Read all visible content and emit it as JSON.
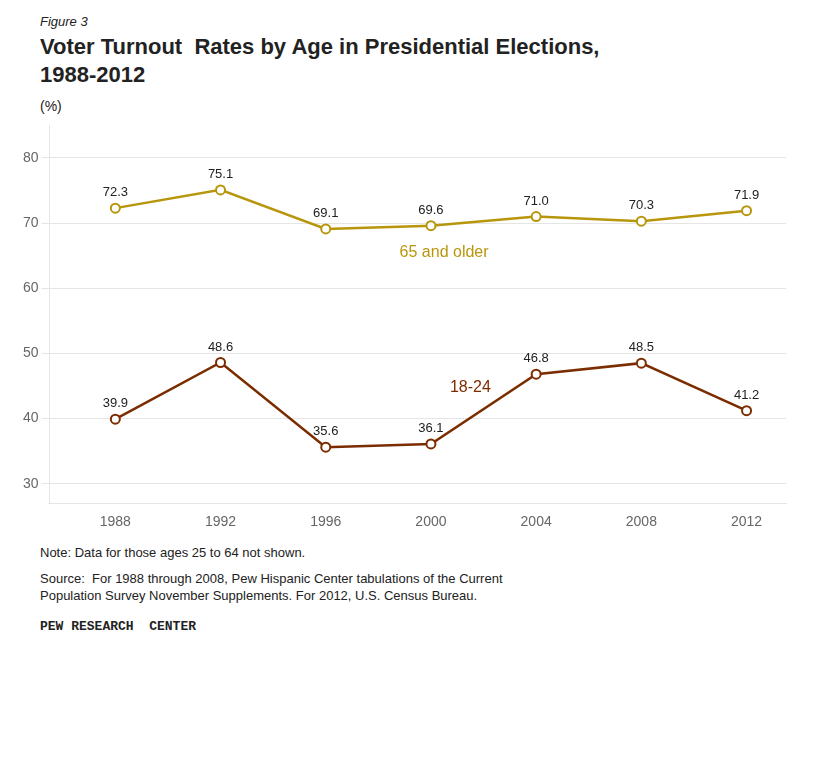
{
  "chart_data": {
    "type": "line",
    "figure_label": "Figure 3",
    "title": "Voter Turnout  Rates by Age in Presidential Elections,\n1988-2012",
    "ylabel": "(%)",
    "x": [
      1988,
      1992,
      1996,
      2000,
      2004,
      2008,
      2012
    ],
    "series": [
      {
        "name": "65 and older",
        "color": "#B8960C",
        "values": [
          72.3,
          75.1,
          69.1,
          69.6,
          71.0,
          70.3,
          71.9
        ],
        "value_labels": [
          "72.3",
          "75.1",
          "69.1",
          "69.6",
          "71.0",
          "70.3",
          "71.9"
        ]
      },
      {
        "name": "18-24",
        "color": "#7B2D00",
        "values": [
          39.9,
          48.6,
          35.6,
          36.1,
          46.8,
          48.5,
          41.2
        ],
        "value_labels": [
          "39.9",
          "48.6",
          "35.6",
          "36.1",
          "46.8",
          "48.5",
          "41.2"
        ]
      }
    ],
    "xlim": [
      1985.5,
      2013.5
    ],
    "xticks": [
      1988,
      1992,
      1996,
      2000,
      2004,
      2008,
      2012
    ],
    "ylim": [
      27,
      85
    ],
    "yticks": [
      30,
      40,
      50,
      60,
      70,
      80
    ],
    "grid": "y",
    "data_labels": true,
    "marker": "circle",
    "line_style": "solid",
    "notes": [
      "Note: Data for those ages 25 to 64 not shown.",
      "Source:  For 1988 through 2008, Pew Hispanic Center tabulations of the Current\nPopulation Survey November Supplements. For 2012, U.S. Census Bureau."
    ],
    "footer": "PEW RESEARCH  CENTER"
  }
}
